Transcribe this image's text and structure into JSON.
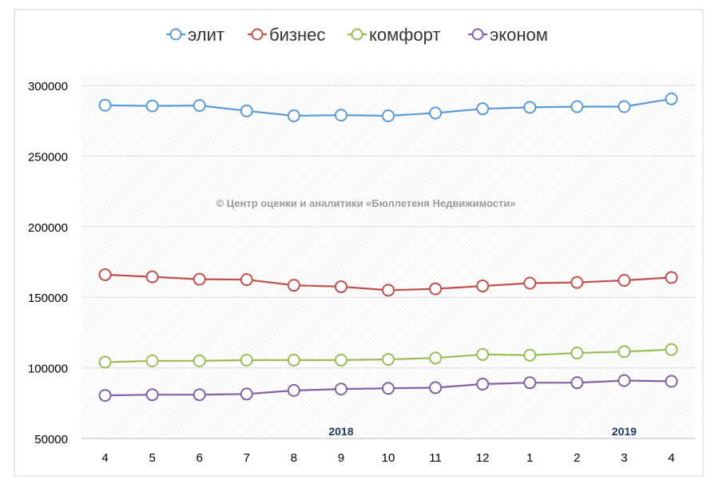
{
  "chart_data": {
    "type": "line",
    "categories": [
      "4",
      "5",
      "6",
      "7",
      "8",
      "9",
      "10",
      "11",
      "12",
      "1",
      "2",
      "3",
      "4"
    ],
    "year_labels": [
      {
        "text": "2018",
        "category_index": 5
      },
      {
        "text": "2019",
        "category_index": 11
      }
    ],
    "watermark": "© Центр оценки и аналитики «Бюллетеня Недвижимости»",
    "ylim": [
      50000,
      300000
    ],
    "yticks": [
      50000,
      100000,
      150000,
      200000,
      250000,
      300000
    ],
    "legend_position": "top",
    "grid": true,
    "series": [
      {
        "name": "элит",
        "color": "#5B9BD5",
        "values": [
          286000,
          285500,
          285800,
          282000,
          278500,
          279000,
          278500,
          280500,
          283500,
          284500,
          285000,
          285000,
          290500
        ]
      },
      {
        "name": "бизнес",
        "color": "#C0504D",
        "values": [
          166000,
          164500,
          162800,
          162500,
          158500,
          157500,
          155000,
          156000,
          158000,
          160000,
          160500,
          162000,
          164000
        ]
      },
      {
        "name": "комфорт",
        "color": "#9BBB59",
        "values": [
          104000,
          105000,
          105000,
          105500,
          105500,
          105500,
          106000,
          107000,
          109500,
          109000,
          110500,
          111500,
          113000
        ]
      },
      {
        "name": "эконом",
        "color": "#8064A2",
        "values": [
          80500,
          81000,
          81000,
          81500,
          84000,
          85000,
          85500,
          86000,
          88500,
          89500,
          89500,
          91000,
          90500
        ]
      }
    ]
  }
}
